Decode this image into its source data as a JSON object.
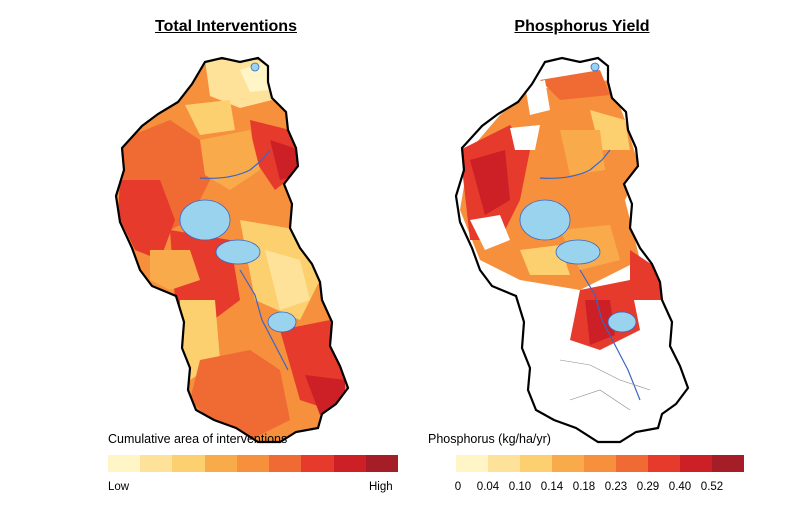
{
  "left_panel": {
    "title": "Total Interventions",
    "legend": {
      "title": "Cumulative area of interventions",
      "low_label": "Low",
      "high_label": "High",
      "colors": [
        "#fff5c6",
        "#ffe29a",
        "#fdd06f",
        "#f9ab4c",
        "#f6903d",
        "#f06a33",
        "#e53a2c",
        "#cc1f26",
        "#a51d27"
      ]
    }
  },
  "right_panel": {
    "title": "Phosphorus Yield",
    "legend": {
      "title": "Phosphorus (kg/ha/yr)",
      "ticks": [
        "0",
        "0.04",
        "0.10",
        "0.14",
        "0.18",
        "0.23",
        "0.29",
        "0.40",
        "0.52"
      ],
      "colors": [
        "#fff5c6",
        "#ffe29a",
        "#fdd06f",
        "#f9ab4c",
        "#f6903d",
        "#f06a33",
        "#e53a2c",
        "#cc1f26",
        "#a51d27"
      ]
    }
  },
  "style": {
    "lake_color": "#9ad3ee",
    "boundary_color": "#000000"
  }
}
